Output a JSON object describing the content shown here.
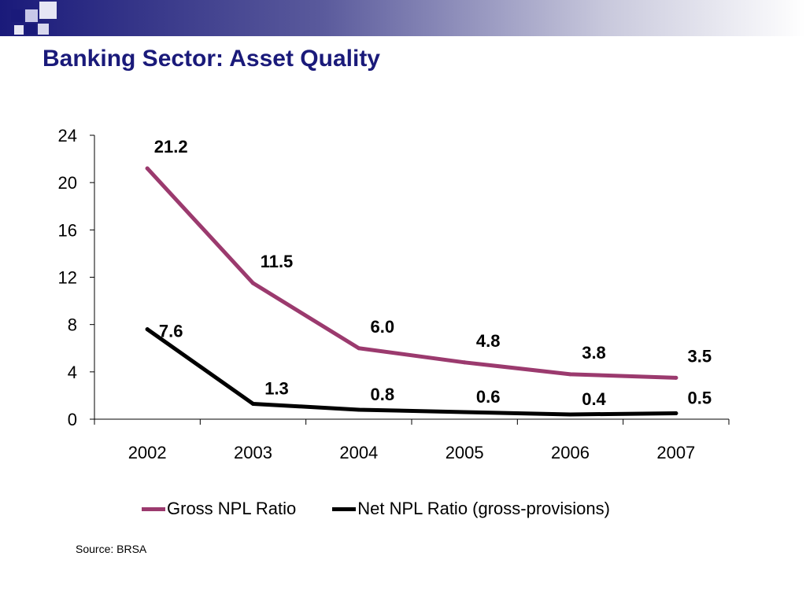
{
  "slide": {
    "title": "Banking Sector: Asset Quality",
    "source": "Source: BRSA",
    "accent_color": "#1a1a7a"
  },
  "chart_data": {
    "type": "line",
    "categories": [
      "2002",
      "2003",
      "2004",
      "2005",
      "2006",
      "2007"
    ],
    "ylim": [
      0,
      24
    ],
    "yticks": [
      "0",
      "4",
      "8",
      "12",
      "16",
      "20",
      "24"
    ],
    "grid": false,
    "legend_position": "bottom",
    "series": [
      {
        "name": "Gross NPL Ratio",
        "color": "#9b3a6e",
        "values": [
          21.2,
          11.5,
          6.0,
          4.8,
          3.8,
          3.5
        ],
        "labels": [
          "21.2",
          "11.5",
          "6.0",
          "4.8",
          "3.8",
          "3.5"
        ]
      },
      {
        "name": "Net NPL Ratio (gross-provisions)",
        "color": "#000000",
        "values": [
          7.6,
          1.3,
          0.8,
          0.6,
          0.4,
          0.5
        ],
        "labels": [
          "7.6",
          "1.3",
          "0.8",
          "0.6",
          "0.4",
          "0.5"
        ]
      }
    ]
  }
}
